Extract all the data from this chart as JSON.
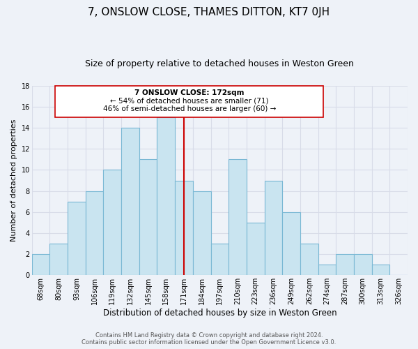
{
  "title": "7, ONSLOW CLOSE, THAMES DITTON, KT7 0JH",
  "subtitle": "Size of property relative to detached houses in Weston Green",
  "xlabel": "Distribution of detached houses by size in Weston Green",
  "ylabel": "Number of detached properties",
  "footer_line1": "Contains HM Land Registry data © Crown copyright and database right 2024.",
  "footer_line2": "Contains public sector information licensed under the Open Government Licence v3.0.",
  "bin_labels": [
    "68sqm",
    "80sqm",
    "93sqm",
    "106sqm",
    "119sqm",
    "132sqm",
    "145sqm",
    "158sqm",
    "171sqm",
    "184sqm",
    "197sqm",
    "210sqm",
    "223sqm",
    "236sqm",
    "249sqm",
    "262sqm",
    "274sqm",
    "287sqm",
    "300sqm",
    "313sqm",
    "326sqm"
  ],
  "bar_heights": [
    2,
    3,
    7,
    8,
    10,
    14,
    11,
    15,
    9,
    8,
    3,
    11,
    5,
    9,
    6,
    3,
    1,
    2,
    2,
    1,
    0
  ],
  "bar_color": "#c9e4f0",
  "bar_edge_color": "#7ab8d4",
  "marker_label": "171sqm",
  "marker_color": "#cc0000",
  "annotation_title": "7 ONSLOW CLOSE: 172sqm",
  "annotation_line1": "← 54% of detached houses are smaller (71)",
  "annotation_line2": "46% of semi-detached houses are larger (60) →",
  "annotation_box_color": "#ffffff",
  "annotation_box_edge": "#cc0000",
  "ylim": [
    0,
    18
  ],
  "background_color": "#eef2f8",
  "grid_color": "#d8dce8",
  "title_fontsize": 11,
  "subtitle_fontsize": 9,
  "xlabel_fontsize": 8.5,
  "ylabel_fontsize": 8,
  "tick_fontsize": 7,
  "annotation_fontsize": 7.5,
  "footer_fontsize": 6
}
